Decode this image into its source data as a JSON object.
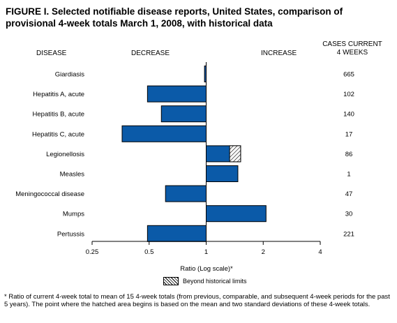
{
  "figure": {
    "title": "FIGURE I. Selected notifiable disease reports, United States, comparison of provisional 4-week totals March 1, 2008, with historical data",
    "header_disease": "DISEASE",
    "header_decrease": "DECREASE",
    "header_increase": "INCREASE",
    "header_cases_line1": "CASES CURRENT",
    "header_cases_line2": "4 WEEKS",
    "axis_title": "Ratio (Log scale)*",
    "legend_label": "Beyond historical limits",
    "footnote": "* Ratio of current 4-week total to mean of 15 4-week totals (from previous, comparable, and subsequent 4-week periods for the past 5 years). The point where the hatched area begins is based on the mean and two standard deviations of these 4-week totals."
  },
  "chart_data": {
    "type": "bar",
    "orientation": "horizontal",
    "x_scale": "log2",
    "xlim": [
      0.25,
      4
    ],
    "xticks": [
      0.25,
      0.5,
      1,
      2,
      4
    ],
    "xtick_labels": [
      "0.25",
      "0.5",
      "1",
      "2",
      "4"
    ],
    "baseline": 1,
    "xlabel": "Ratio (Log scale)*",
    "categories": [
      "Giardiasis",
      "Hepatitis A, acute",
      "Hepatitis B, acute",
      "Hepatitis C, acute",
      "Legionellosis",
      "Measles",
      "Meningococcal disease",
      "Mumps",
      "Pertussis"
    ],
    "values": [
      0.98,
      0.49,
      0.58,
      0.36,
      1.52,
      1.47,
      0.61,
      2.07,
      0.49
    ],
    "beyond_historical_limits_start": [
      null,
      null,
      null,
      null,
      1.33,
      null,
      null,
      null,
      null
    ],
    "cases_current_4_weeks": [
      "665",
      "102",
      "140",
      "17",
      "86",
      "1",
      "47",
      "30",
      "221"
    ],
    "bar_color": "#0b5aa8",
    "hatch_label": "Beyond historical limits",
    "grid": false
  }
}
